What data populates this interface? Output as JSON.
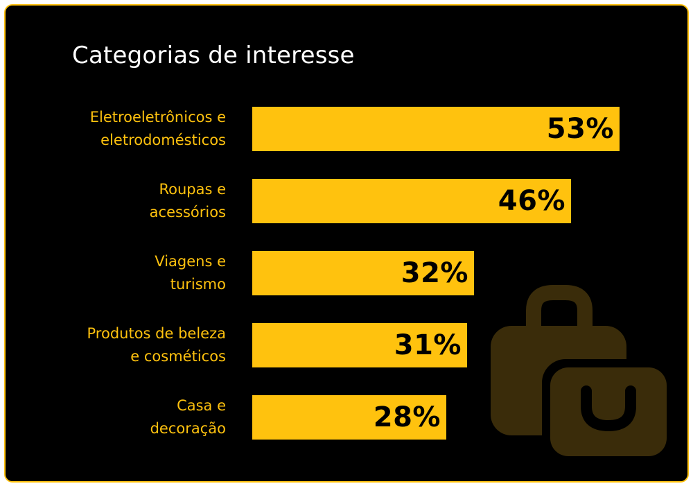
{
  "title": "Categorias de interesse",
  "colors": {
    "background": "#000000",
    "accent": "#FFC20E",
    "title": "#FFFFFF",
    "decoration": "#3A2C0A"
  },
  "decoration_icon": "shopping-bags-icon",
  "chart_data": {
    "type": "bar",
    "orientation": "horizontal",
    "title": "Categorias de interesse",
    "categories": [
      [
        "Eletroeletrônicos e",
        "eletrodomésticos"
      ],
      [
        "Roupas e",
        "acessórios"
      ],
      [
        "Viagens e",
        "turismo"
      ],
      [
        "Produtos de beleza",
        "e cosméticos"
      ],
      [
        "Casa e",
        "decoração"
      ]
    ],
    "values": [
      53,
      46,
      32,
      31,
      28
    ],
    "value_labels": [
      "53%",
      "46%",
      "32%",
      "31%",
      "28%"
    ],
    "unit": "%",
    "xlim": [
      0,
      100
    ],
    "grid": false,
    "legend": "none"
  }
}
